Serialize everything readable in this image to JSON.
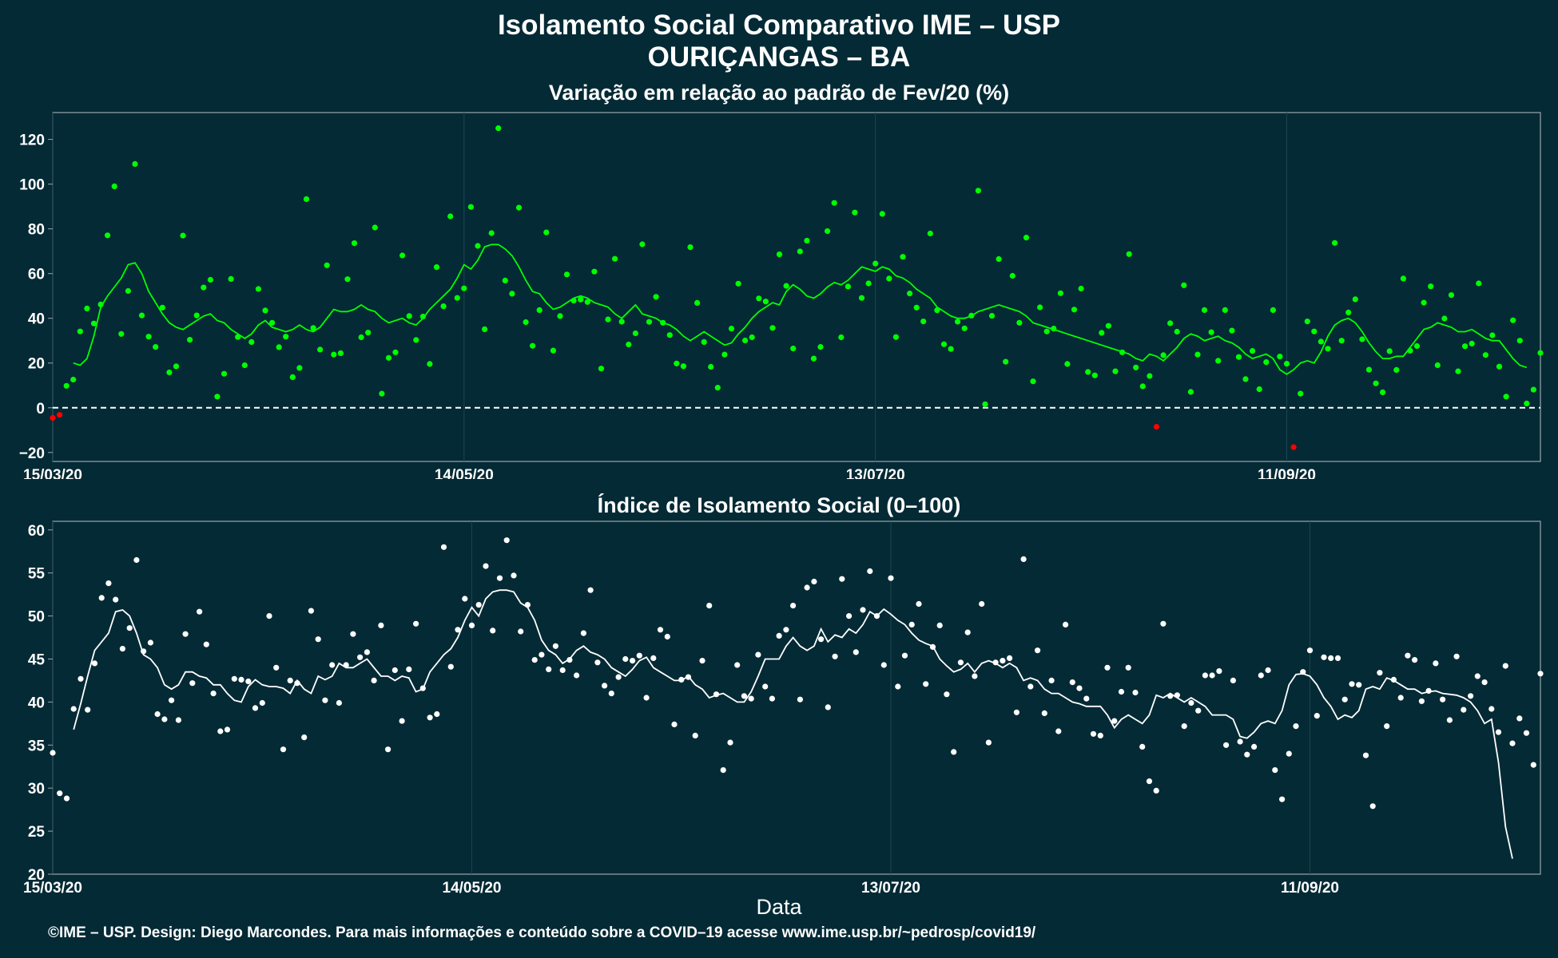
{
  "title": {
    "line1": "Isolamento Social Comparativo IME – USP",
    "line2": "OURIÇANGAS – BA"
  },
  "xlabel": "Data",
  "footer": "©IME – USP. Design: Diego Marcondes. Para mais informações e conteúdo sobre a COVID–19 acesse www.ime.usp.br/~pedrosp/covid19/",
  "colors": {
    "background": "#042a35",
    "panel_border": "#9aa7ab",
    "green": "#00ff00",
    "red": "#ff0000",
    "white": "#ffffff"
  },
  "chart_data": [
    {
      "type": "scatter",
      "title": "Variação em relação ao padrão de Fev/20 (%)",
      "xlabel": "",
      "ylabel": "",
      "ylim": [
        -24,
        132
      ],
      "yticks": [
        -20,
        0,
        20,
        40,
        60,
        80,
        100,
        120
      ],
      "x_start": "15/03/20",
      "x_end": "14/10/20",
      "xticks": [
        "15/03/20",
        "14/05/20",
        "13/07/20",
        "11/09/20"
      ],
      "reference_line": 0,
      "points_colored": "green when value >= 0, red when value < 0",
      "line_note": "7-day moving average",
      "series": [
        {
          "name": "",
          "values": [
            -4.5,
            -3.2,
            9.8,
            12.6,
            34.1,
            44.4,
            37.7,
            46.2,
            77.1,
            99.0,
            33.0,
            52.2,
            109.0,
            41.3,
            31.8,
            27.2,
            44.8,
            15.8,
            18.5,
            77.0,
            30.4,
            41.3,
            53.8,
            57.2,
            5.0,
            15.2,
            57.6,
            31.6,
            19.0,
            29.4,
            53.1,
            43.5,
            38.0,
            27.1,
            31.8,
            13.7,
            17.8,
            93.3,
            35.7,
            26.0,
            63.7,
            23.8,
            24.4,
            57.5,
            73.6,
            31.5,
            33.6,
            80.6,
            6.3,
            22.3,
            24.8,
            68.1,
            41.0,
            30.3,
            40.8,
            19.6,
            62.9,
            45.4,
            85.6,
            49.1,
            53.4,
            89.8,
            72.4,
            35.1,
            78.1,
            125.0,
            56.9,
            51.0,
            89.5,
            38.3,
            27.7,
            43.7,
            78.4,
            25.6,
            41.0,
            59.6,
            47.9,
            48.4,
            47.3,
            60.9,
            17.5,
            39.5,
            66.6,
            38.5,
            28.3,
            33.3,
            73.1,
            38.4,
            49.6,
            38.0,
            32.5,
            19.8,
            18.6,
            71.8,
            46.9,
            29.4,
            18.3,
            9.0,
            23.8,
            35.4,
            55.5,
            30.1,
            31.5,
            48.9,
            47.5,
            35.7,
            68.6,
            54.5,
            26.5,
            69.9,
            74.7,
            22.0,
            27.2,
            79.0,
            91.6,
            31.5,
            54.2,
            87.3,
            49.1,
            55.6,
            64.5,
            86.7,
            57.8,
            31.6,
            67.5,
            51.1,
            44.8,
            38.6,
            77.9,
            43.6,
            28.4,
            26.3,
            38.5,
            35.5,
            41.2,
            97.1,
            1.6,
            41.1,
            66.5,
            20.6,
            59.0,
            38.0,
            76.1,
            11.8,
            44.9,
            34.1,
            35.4,
            51.2,
            19.6,
            43.9,
            53.3,
            16.0,
            14.5,
            33.5,
            36.6,
            16.3,
            24.8,
            68.7,
            18.0,
            9.6,
            14.2,
            -8.5,
            23.5,
            37.8,
            34.0,
            54.8,
            7.1,
            23.8,
            43.7,
            33.8,
            21.0,
            43.7,
            34.5,
            22.7,
            12.8,
            25.4,
            8.3,
            20.4,
            43.7,
            22.9,
            19.7,
            -17.6,
            6.3,
            38.6,
            34.1,
            29.6,
            26.4,
            73.7,
            30.0,
            42.6,
            48.5,
            30.6,
            17.0,
            10.9,
            6.9,
            25.3,
            16.9,
            57.8,
            25.5,
            27.6,
            47.0,
            54.3,
            19.0,
            39.9,
            50.4,
            16.3,
            27.5,
            28.7,
            55.6,
            23.6,
            32.4,
            18.4,
            5.0,
            39.1,
            30.0,
            1.9,
            8.1,
            24.5
          ]
        },
        {
          "name": "",
          "values": [
            null,
            null,
            null,
            20.0,
            19.0,
            22.0,
            32.0,
            45.0,
            50.0,
            54.0,
            58.0,
            64.0,
            64.8,
            60.0,
            52.0,
            47.0,
            42.0,
            38.0,
            36.0,
            35.0,
            37.0,
            39.0,
            41.0,
            42.0,
            39.0,
            38.0,
            35.0,
            33.0,
            31.0,
            33.0,
            37.0,
            39.0,
            36.0,
            35.0,
            34.0,
            35.0,
            37.0,
            35.0,
            34.0,
            36.0,
            40.0,
            44.0,
            43.0,
            43.0,
            44.0,
            46.0,
            44.0,
            43.0,
            40.0,
            38.0,
            39.0,
            40.0,
            38.0,
            37.0,
            40.0,
            44.0,
            47.0,
            50.0,
            53.0,
            58.0,
            64.0,
            62.0,
            66.0,
            72.0,
            73.0,
            73.0,
            71.0,
            68.0,
            63.0,
            57.0,
            52.0,
            51.0,
            47.0,
            44.0,
            45.0,
            47.0,
            49.0,
            50.0,
            49.0,
            47.0,
            46.0,
            45.0,
            42.0,
            40.0,
            43.0,
            46.0,
            42.0,
            41.0,
            40.0,
            38.0,
            37.0,
            35.0,
            32.0,
            30.0,
            32.0,
            34.0,
            32.0,
            30.0,
            28.0,
            29.0,
            33.0,
            36.0,
            40.0,
            43.0,
            45.0,
            47.0,
            46.0,
            52.0,
            55.0,
            53.0,
            50.0,
            49.0,
            51.0,
            54.0,
            56.0,
            55.0,
            57.0,
            60.0,
            63.0,
            62.0,
            61.0,
            63.0,
            62.0,
            59.0,
            58.0,
            56.0,
            53.0,
            51.0,
            49.0,
            45.0,
            43.0,
            41.0,
            40.0,
            40.0,
            41.0,
            43.0,
            44.0,
            45.0,
            46.0,
            45.0,
            44.0,
            43.0,
            41.0,
            38.0,
            37.0,
            36.0,
            35.0,
            34.0,
            33.0,
            32.0,
            31.0,
            30.0,
            29.0,
            28.0,
            27.0,
            26.0,
            25.0,
            24.0,
            22.0,
            21.0,
            24.0,
            23.0,
            21.0,
            24.0,
            27.0,
            31.0,
            33.0,
            32.0,
            30.0,
            31.0,
            32.0,
            30.0,
            29.0,
            27.0,
            24.0,
            22.0,
            23.0,
            24.0,
            22.0,
            17.0,
            15.0,
            17.0,
            20.0,
            21.0,
            20.0,
            25.0,
            32.0,
            37.0,
            39.0,
            40.0,
            38.0,
            34.0,
            29.0,
            25.0,
            22.0,
            22.0,
            23.0,
            23.0,
            27.0,
            31.0,
            35.0,
            36.0,
            38.0,
            37.0,
            36.0,
            34.0,
            34.0,
            35.0,
            33.0,
            31.0,
            30.0,
            30.0,
            26.0,
            22.0,
            19.0,
            18.0
          ]
        }
      ]
    },
    {
      "type": "scatter",
      "title": "Índice de Isolamento Social (0–100)",
      "xlabel": "Data",
      "ylabel": "",
      "ylim": [
        20,
        61
      ],
      "yticks": [
        20,
        25,
        30,
        35,
        40,
        45,
        50,
        55,
        60
      ],
      "x_start": "15/03/20",
      "x_end": "14/10/20",
      "xticks": [
        "15/03/20",
        "14/05/20",
        "13/07/20",
        "11/09/20"
      ],
      "line_note": "7-day moving average",
      "series": [
        {
          "name": "",
          "values": [
            34.1,
            29.4,
            28.8,
            39.2,
            42.7,
            39.1,
            44.5,
            52.1,
            53.8,
            51.9,
            46.2,
            48.6,
            56.5,
            45.9,
            46.9,
            38.6,
            38.0,
            40.2,
            37.9,
            47.9,
            42.2,
            50.5,
            46.7,
            41.0,
            36.6,
            36.8,
            42.7,
            42.6,
            42.4,
            39.3,
            39.9,
            50.0,
            44.0,
            34.5,
            42.5,
            42.2,
            35.9,
            50.6,
            47.3,
            40.2,
            44.3,
            39.9,
            44.3,
            47.9,
            45.2,
            45.8,
            42.5,
            48.9,
            34.5,
            43.7,
            37.8,
            43.8,
            49.1,
            41.6,
            38.2,
            38.6,
            58.0,
            44.1,
            48.4,
            52.0,
            48.9,
            51.3,
            55.8,
            48.3,
            54.4,
            58.8,
            54.7,
            48.2,
            51.3,
            44.9,
            45.5,
            43.8,
            46.5,
            43.7,
            44.9,
            43.1,
            48.0,
            53.0,
            44.6,
            41.9,
            41.0,
            42.9,
            45.0,
            44.8,
            45.4,
            40.5,
            45.1,
            48.4,
            47.6,
            37.4,
            42.6,
            42.9,
            36.1,
            44.8,
            51.2,
            40.9,
            32.1,
            35.3,
            44.3,
            40.7,
            40.4,
            45.5,
            41.8,
            40.4,
            47.7,
            48.4,
            51.2,
            40.3,
            53.3,
            54.0,
            47.3,
            39.4,
            45.3,
            54.3,
            50.0,
            45.8,
            50.7,
            55.2,
            50.0,
            44.3,
            54.4,
            41.8,
            45.4,
            49.0,
            51.4,
            42.1,
            46.4,
            48.9,
            40.9,
            34.2,
            44.6,
            48.1,
            43.0,
            51.4,
            35.3,
            44.6,
            44.8,
            45.1,
            38.8,
            56.6,
            41.8,
            46.0,
            38.7,
            42.5,
            36.6,
            49.0,
            42.3,
            41.6,
            40.4,
            36.3,
            36.1,
            44.0,
            37.8,
            41.2,
            44.0,
            41.1,
            34.8,
            30.8,
            29.7,
            49.1,
            40.7,
            40.8,
            37.2,
            39.9,
            39.0,
            43.1,
            43.1,
            43.6,
            35.0,
            42.5,
            35.4,
            33.9,
            34.8,
            43.1,
            43.7,
            32.1,
            28.7,
            34.0,
            37.2,
            43.5,
            46.0,
            38.4,
            45.2,
            45.1,
            45.1,
            40.3,
            42.1,
            42.0,
            33.8,
            27.9,
            43.4,
            37.2,
            42.6,
            40.5,
            45.4,
            44.9,
            40.1,
            41.3,
            44.5,
            40.3,
            37.9,
            45.3,
            39.1,
            40.7,
            43.0,
            42.3,
            39.2,
            36.5,
            44.2,
            35.2,
            38.1,
            36.4,
            32.7,
            43.3
          ]
        },
        {
          "name": "",
          "values": [
            null,
            null,
            null,
            36.8,
            39.8,
            43.0,
            46.0,
            47.0,
            48.0,
            50.5,
            50.7,
            50.0,
            48.0,
            45.5,
            45.0,
            44.0,
            42.0,
            41.5,
            42.0,
            43.5,
            43.5,
            43.0,
            42.8,
            42.0,
            42.0,
            41.0,
            40.2,
            40.0,
            41.8,
            42.6,
            42.0,
            41.8,
            41.8,
            41.6,
            41.0,
            42.5,
            41.5,
            41.0,
            43.0,
            42.6,
            43.0,
            44.5,
            44.0,
            44.0,
            44.5,
            45.0,
            44.0,
            43.0,
            43.0,
            42.5,
            43.0,
            42.8,
            41.2,
            41.5,
            43.5,
            44.5,
            45.5,
            46.2,
            47.5,
            49.5,
            51.0,
            50.0,
            52.0,
            52.8,
            53.0,
            53.0,
            52.8,
            51.5,
            51.0,
            49.5,
            47.2,
            46.0,
            45.5,
            44.5,
            45.0,
            46.0,
            46.5,
            45.8,
            45.5,
            45.0,
            44.0,
            43.5,
            43.0,
            43.8,
            44.8,
            45.2,
            44.0,
            43.5,
            43.0,
            42.5,
            42.5,
            43.0,
            42.0,
            41.5,
            40.5,
            40.8,
            41.0,
            40.5,
            40.0,
            40.0,
            41.2,
            43.0,
            45.0,
            45.0,
            45.0,
            46.5,
            47.5,
            46.5,
            46.0,
            46.5,
            48.5,
            47.0,
            47.8,
            47.5,
            48.5,
            48.0,
            49.0,
            50.5,
            50.0,
            50.8,
            50.2,
            49.5,
            49.0,
            48.0,
            47.2,
            46.8,
            46.5,
            45.0,
            44.2,
            43.5,
            43.8,
            44.5,
            43.5,
            44.5,
            44.8,
            44.5,
            44.0,
            44.5,
            44.0,
            42.5,
            42.8,
            42.5,
            41.5,
            41.0,
            41.0,
            40.5,
            40.0,
            39.8,
            39.5,
            39.5,
            39.5,
            38.5,
            37.0,
            38.0,
            38.5,
            38.0,
            37.5,
            38.5,
            40.8,
            40.5,
            41.0,
            40.5,
            40.0,
            40.5,
            40.0,
            39.5,
            38.5,
            38.5,
            38.5,
            38.0,
            36.0,
            35.8,
            36.5,
            37.5,
            37.8,
            37.5,
            39.0,
            42.0,
            43.2,
            43.3,
            43.0,
            42.0,
            40.5,
            39.5,
            38.0,
            38.5,
            38.2,
            39.0,
            41.5,
            41.8,
            41.5,
            42.8,
            42.5,
            42.0,
            41.5,
            41.5,
            41.0,
            41.2,
            41.3,
            41.0,
            40.9,
            40.8,
            40.5,
            40.0,
            39.0,
            37.5,
            38.0,
            33.0,
            25.5,
            21.8
          ]
        }
      ]
    }
  ]
}
